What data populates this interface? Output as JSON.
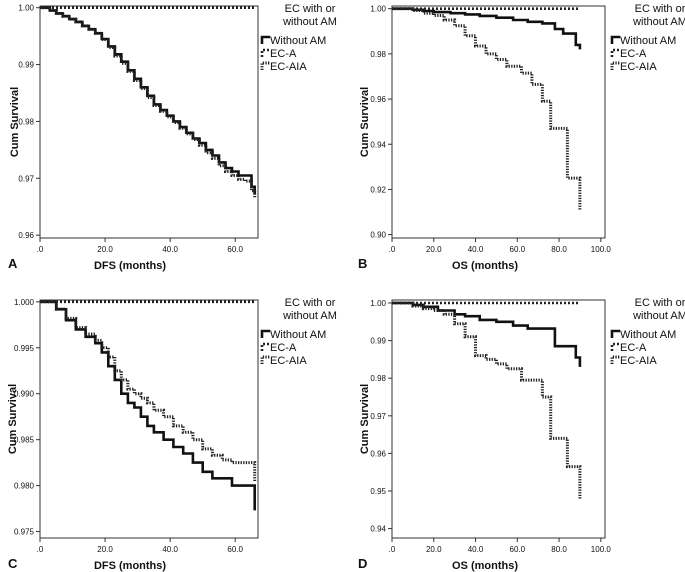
{
  "figure": {
    "description_labels": [
      "A",
      "B",
      "C",
      "D"
    ]
  },
  "chart_data": [
    {
      "type": "line",
      "panel": "A",
      "xlabel": "DFS (months)",
      "ylabel": "Cum Survival",
      "xlim": [
        0,
        67
      ],
      "ylim": [
        0.9595,
        1.0003
      ],
      "xticks": [
        0,
        20,
        40,
        60
      ],
      "xtick_labels": [
        ".0",
        "20.0",
        "40.0",
        "60.0"
      ],
      "yticks": [
        0.96,
        0.97,
        0.98,
        0.99,
        1.0
      ],
      "ytick_labels": [
        "0.96",
        "0.97",
        "0.98",
        "0.99",
        "1.00"
      ],
      "legend_title": "EC with or without AM",
      "legend_title_lines": [
        "EC with or",
        "without AM"
      ],
      "legend_position": "top-right",
      "series": [
        {
          "name": "Without AM",
          "style": "solid",
          "x": [
            0,
            3,
            5,
            7,
            9,
            11,
            13,
            15,
            17,
            19,
            21,
            23,
            25,
            27,
            29,
            31,
            33,
            35,
            37,
            39,
            41,
            43,
            45,
            47,
            49,
            51,
            53,
            55,
            57,
            59,
            61,
            63,
            65,
            66
          ],
          "y": [
            1.0,
            0.9995,
            0.999,
            0.9985,
            0.998,
            0.9975,
            0.9968,
            0.9962,
            0.9955,
            0.9945,
            0.9932,
            0.9918,
            0.9905,
            0.989,
            0.9875,
            0.986,
            0.9845,
            0.983,
            0.982,
            0.981,
            0.98,
            0.979,
            0.978,
            0.977,
            0.9762,
            0.975,
            0.974,
            0.9728,
            0.9718,
            0.9712,
            0.9705,
            0.9705,
            0.9685,
            0.9672
          ]
        },
        {
          "name": "EC-A",
          "style": "dashed",
          "x": [
            0,
            66
          ],
          "y": [
            1.0,
            1.0
          ]
        },
        {
          "name": "EC-AIA",
          "style": "dotted",
          "x": [
            0,
            3,
            5,
            7,
            9,
            11,
            13,
            15,
            17,
            19,
            21,
            23,
            25,
            27,
            29,
            31,
            33,
            35,
            37,
            39,
            41,
            43,
            45,
            47,
            49,
            51,
            53,
            55,
            57,
            59,
            61,
            63,
            65,
            66
          ],
          "y": [
            1.0,
            0.9995,
            0.999,
            0.9985,
            0.998,
            0.9975,
            0.9968,
            0.9962,
            0.9955,
            0.9944,
            0.993,
            0.9915,
            0.9902,
            0.9888,
            0.9872,
            0.9858,
            0.9842,
            0.9828,
            0.9818,
            0.9808,
            0.9798,
            0.9788,
            0.9778,
            0.9768,
            0.9758,
            0.9745,
            0.9735,
            0.9722,
            0.9712,
            0.9705,
            0.9698,
            0.9695,
            0.9678,
            0.9665
          ]
        }
      ]
    },
    {
      "type": "line",
      "panel": "B",
      "xlabel": "OS (months)",
      "ylabel": "Cum Survival",
      "xlim": [
        0,
        102
      ],
      "ylim": [
        0.8985,
        1.0012
      ],
      "xticks": [
        0,
        20,
        40,
        60,
        80,
        100
      ],
      "xtick_labels": [
        ".0",
        "20.0",
        "40.0",
        "60.0",
        "80.0",
        "100.0"
      ],
      "yticks": [
        0.9,
        0.92,
        0.94,
        0.96,
        0.98,
        1.0
      ],
      "ytick_labels": [
        "0.90",
        "0.92",
        "0.94",
        "0.96",
        "0.98",
        "1.00"
      ],
      "legend_title": "EC with or without AM",
      "legend_title_lines": [
        "EC with or",
        "without AM"
      ],
      "legend_position": "top-right",
      "series": [
        {
          "name": "Without AM",
          "style": "solid",
          "x": [
            0,
            10,
            15,
            20,
            28,
            35,
            42,
            50,
            58,
            65,
            72,
            78,
            82,
            88,
            90
          ],
          "y": [
            1.0,
            0.9995,
            0.999,
            0.9985,
            0.998,
            0.9975,
            0.9968,
            0.996,
            0.995,
            0.9942,
            0.9935,
            0.991,
            0.989,
            0.984,
            0.982
          ]
        },
        {
          "name": "EC-A",
          "style": "dashed",
          "x": [
            0,
            90
          ],
          "y": [
            1.0,
            1.0
          ]
        },
        {
          "name": "EC-AIA",
          "style": "dotted",
          "x": [
            0,
            10,
            15,
            20,
            25,
            30,
            35,
            40,
            45,
            50,
            55,
            62,
            67,
            72,
            76,
            80,
            84,
            88,
            90
          ],
          "y": [
            1.0,
            0.9992,
            0.998,
            0.997,
            0.995,
            0.9925,
            0.988,
            0.9835,
            0.98,
            0.9775,
            0.9745,
            0.9715,
            0.9665,
            0.959,
            0.947,
            0.947,
            0.925,
            0.925,
            0.911
          ]
        }
      ]
    },
    {
      "type": "line",
      "panel": "C",
      "xlabel": "DFS (months)",
      "ylabel": "Cum Survival",
      "xlim": [
        0,
        67
      ],
      "ylim": [
        0.9743,
        1.0002
      ],
      "xticks": [
        0,
        20,
        40,
        60
      ],
      "xtick_labels": [
        ".0",
        "20.0",
        "40.0",
        "60.0"
      ],
      "yticks": [
        0.975,
        0.98,
        0.985,
        0.99,
        0.995,
        1.0
      ],
      "ytick_labels": [
        "0.975",
        "0.980",
        "0.985",
        "0.990",
        "0.995",
        "1.000"
      ],
      "legend_title": "EC with or without AM",
      "legend_title_lines": [
        "EC with or",
        "without AM"
      ],
      "legend_position": "top-right",
      "series": [
        {
          "name": "Without AM",
          "style": "solid",
          "x": [
            0,
            5,
            8,
            11,
            14,
            17,
            19,
            21,
            23,
            25,
            27,
            29,
            31,
            33,
            35,
            38,
            41,
            44,
            47,
            50,
            53,
            56,
            59,
            62,
            65,
            66
          ],
          "y": [
            1.0,
            0.9992,
            0.998,
            0.997,
            0.9962,
            0.9955,
            0.9945,
            0.993,
            0.9915,
            0.99,
            0.989,
            0.9885,
            0.9875,
            0.9865,
            0.9858,
            0.985,
            0.9842,
            0.9835,
            0.9825,
            0.9815,
            0.9808,
            0.9808,
            0.98,
            0.98,
            0.98,
            0.9773
          ]
        },
        {
          "name": "EC-A",
          "style": "dashed",
          "x": [
            0,
            66
          ],
          "y": [
            1.0,
            1.0
          ]
        },
        {
          "name": "EC-AIA",
          "style": "dotted",
          "x": [
            0,
            5,
            8,
            11,
            14,
            17,
            19,
            21,
            23,
            25,
            27,
            29,
            31,
            33,
            35,
            38,
            41,
            44,
            47,
            50,
            53,
            56,
            59,
            62,
            65,
            66
          ],
          "y": [
            1.0,
            0.9992,
            0.9982,
            0.9972,
            0.9965,
            0.9958,
            0.995,
            0.994,
            0.9925,
            0.9915,
            0.9905,
            0.99,
            0.9895,
            0.989,
            0.9882,
            0.9875,
            0.9865,
            0.9858,
            0.985,
            0.984,
            0.9833,
            0.9828,
            0.9825,
            0.9825,
            0.9825,
            0.9805
          ]
        }
      ]
    },
    {
      "type": "line",
      "panel": "D",
      "xlabel": "OS (months)",
      "ylabel": "Cum Survival",
      "xlim": [
        0,
        102
      ],
      "ylim": [
        0.9375,
        1.0008
      ],
      "xticks": [
        0,
        20,
        40,
        60,
        80,
        100
      ],
      "xtick_labels": [
        ".0",
        "20.0",
        "40.0",
        "60.0",
        "80.0",
        "100.0"
      ],
      "yticks": [
        0.94,
        0.95,
        0.96,
        0.97,
        0.98,
        0.99,
        1.0
      ],
      "ytick_labels": [
        "0.94",
        "0.95",
        "0.96",
        "0.97",
        "0.98",
        "0.99",
        "1.00"
      ],
      "legend_title": "EC with or without AM",
      "legend_title_lines": [
        "EC with or",
        "without AM"
      ],
      "legend_position": "top-right",
      "series": [
        {
          "name": "Without AM",
          "style": "solid",
          "x": [
            0,
            10,
            15,
            22,
            30,
            35,
            42,
            50,
            58,
            65,
            72,
            78,
            84,
            88,
            90
          ],
          "y": [
            1.0,
            0.9995,
            0.999,
            0.998,
            0.997,
            0.9965,
            0.9955,
            0.995,
            0.994,
            0.9932,
            0.9932,
            0.9885,
            0.9885,
            0.9855,
            0.983
          ]
        },
        {
          "name": "EC-A",
          "style": "dashed",
          "x": [
            0,
            90
          ],
          "y": [
            1.0,
            1.0
          ]
        },
        {
          "name": "EC-AIA",
          "style": "dotted",
          "x": [
            0,
            10,
            15,
            20,
            25,
            30,
            35,
            40,
            45,
            50,
            55,
            62,
            67,
            72,
            76,
            80,
            84,
            88,
            90
          ],
          "y": [
            1.0,
            0.9992,
            0.9985,
            0.998,
            0.997,
            0.9945,
            0.991,
            0.986,
            0.985,
            0.9838,
            0.9825,
            0.9795,
            0.9795,
            0.975,
            0.964,
            0.964,
            0.9565,
            0.9565,
            0.948
          ]
        }
      ]
    }
  ]
}
